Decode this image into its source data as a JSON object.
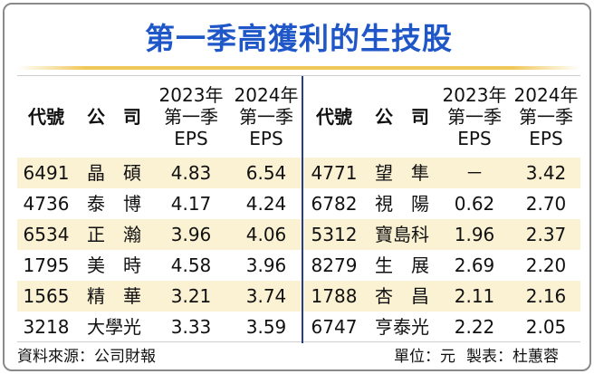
{
  "title": "第一季高獲利的生技股",
  "headers": {
    "code": "代號",
    "company": "公　司",
    "eps2023": [
      "2023年",
      "第一季",
      "EPS"
    ],
    "eps2024": [
      "2024年",
      "第一季",
      "EPS"
    ]
  },
  "rows": [
    {
      "left": {
        "code": "6491",
        "name": "晶　碩",
        "eps2023": "4.83",
        "eps2024": "6.54"
      },
      "right": {
        "code": "4771",
        "name": "望　隼",
        "eps2023": "－",
        "eps2024": "3.42"
      }
    },
    {
      "left": {
        "code": "4736",
        "name": "泰　博",
        "eps2023": "4.17",
        "eps2024": "4.24"
      },
      "right": {
        "code": "6782",
        "name": "視　陽",
        "eps2023": "0.62",
        "eps2024": "2.70"
      }
    },
    {
      "left": {
        "code": "6534",
        "name": "正　瀚",
        "eps2023": "3.96",
        "eps2024": "4.06"
      },
      "right": {
        "code": "5312",
        "name": "寶島科",
        "eps2023": "1.96",
        "eps2024": "2.37"
      }
    },
    {
      "left": {
        "code": "1795",
        "name": "美　時",
        "eps2023": "4.58",
        "eps2024": "3.96"
      },
      "right": {
        "code": "8279",
        "name": "生　展",
        "eps2023": "2.69",
        "eps2024": "2.20"
      }
    },
    {
      "left": {
        "code": "1565",
        "name": "精　華",
        "eps2023": "3.21",
        "eps2024": "3.74"
      },
      "right": {
        "code": "1788",
        "name": "杏　昌",
        "eps2023": "2.11",
        "eps2024": "2.16"
      }
    },
    {
      "left": {
        "code": "3218",
        "name": "大學光",
        "eps2023": "3.33",
        "eps2024": "3.59"
      },
      "right": {
        "code": "6747",
        "name": "亨泰光",
        "eps2023": "2.22",
        "eps2024": "2.05"
      }
    }
  ],
  "footer": {
    "source": "資料來源：公司財報",
    "unit": "單位：元",
    "maker": "製表：杜蕙蓉"
  },
  "colors": {
    "title": "#1f57c9",
    "row_highlight": "#fbf1d3",
    "divider": "#233f8c",
    "title_rule": "#f0c85a"
  }
}
